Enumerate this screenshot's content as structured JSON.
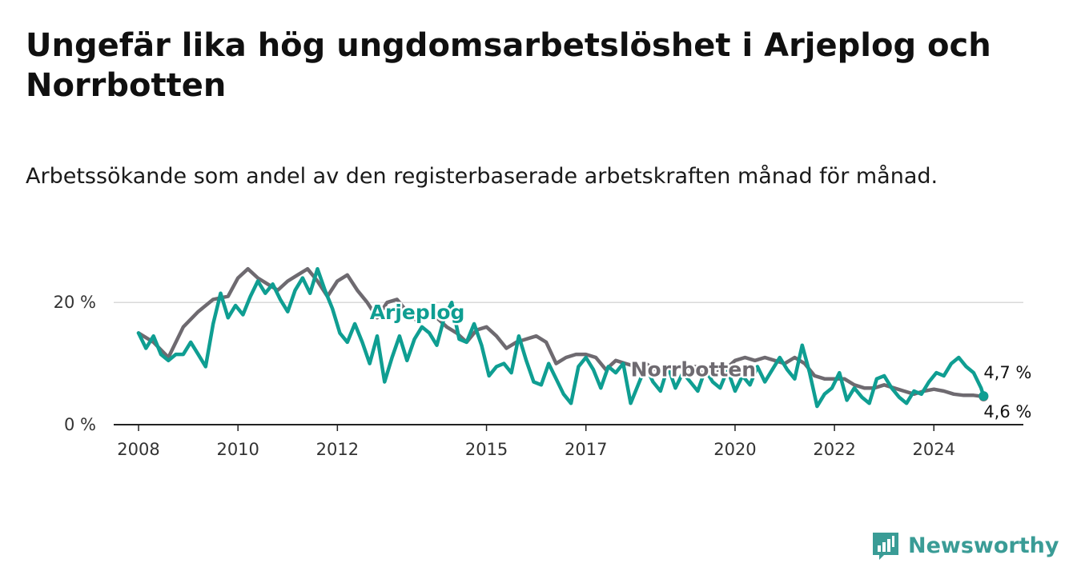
{
  "title": "Ungefär lika hög ungdomsarbetslöshet i Arjeplog och Norrbotten",
  "subtitle": "Arbetssökande som andel av den registerbaserade arbetskraften månad för månad.",
  "brand": {
    "name": "Newsworthy",
    "color": "#3a9c96",
    "icon": "bar-chart-icon"
  },
  "chart_data": {
    "type": "line",
    "x_unit": "year",
    "xlim": [
      2007.5,
      2025.8
    ],
    "ylim": [
      0,
      25
    ],
    "y_ticks": [
      {
        "value": 0,
        "label": "0 %"
      },
      {
        "value": 20,
        "label": "20 %"
      }
    ],
    "x_ticks": [
      {
        "value": 2008,
        "label": "2008"
      },
      {
        "value": 2010,
        "label": "2010"
      },
      {
        "value": 2012,
        "label": "2012"
      },
      {
        "value": 2015,
        "label": "2015"
      },
      {
        "value": 2017,
        "label": "2017"
      },
      {
        "value": 2020,
        "label": "2020"
      },
      {
        "value": 2022,
        "label": "2022"
      },
      {
        "value": 2024,
        "label": "2024"
      }
    ],
    "grid": "horizontal",
    "series": [
      {
        "name": "Norrbotten",
        "color": "#6e6a70",
        "end_label": "4,6 %",
        "points": [
          [
            2008.0,
            15.0
          ],
          [
            2008.3,
            13.5
          ],
          [
            2008.6,
            11.0
          ],
          [
            2008.9,
            16.0
          ],
          [
            2009.2,
            18.5
          ],
          [
            2009.5,
            20.5
          ],
          [
            2009.8,
            21.0
          ],
          [
            2010.0,
            24.0
          ],
          [
            2010.2,
            25.5
          ],
          [
            2010.4,
            24.0
          ],
          [
            2010.6,
            23.0
          ],
          [
            2010.8,
            22.0
          ],
          [
            2011.0,
            23.5
          ],
          [
            2011.2,
            24.5
          ],
          [
            2011.4,
            25.5
          ],
          [
            2011.6,
            23.5
          ],
          [
            2011.8,
            21.0
          ],
          [
            2012.0,
            23.5
          ],
          [
            2012.2,
            24.5
          ],
          [
            2012.4,
            22.0
          ],
          [
            2012.6,
            20.0
          ],
          [
            2012.8,
            17.5
          ],
          [
            2013.0,
            20.0
          ],
          [
            2013.2,
            20.5
          ],
          [
            2013.4,
            18.5
          ],
          [
            2013.6,
            17.0
          ],
          [
            2013.8,
            18.0
          ],
          [
            2014.0,
            17.5
          ],
          [
            2014.2,
            16.0
          ],
          [
            2014.4,
            15.0
          ],
          [
            2014.6,
            13.5
          ],
          [
            2014.8,
            15.5
          ],
          [
            2015.0,
            16.0
          ],
          [
            2015.2,
            14.5
          ],
          [
            2015.4,
            12.5
          ],
          [
            2015.6,
            13.5
          ],
          [
            2015.8,
            14.0
          ],
          [
            2016.0,
            14.5
          ],
          [
            2016.2,
            13.5
          ],
          [
            2016.4,
            10.0
          ],
          [
            2016.6,
            11.0
          ],
          [
            2016.8,
            11.5
          ],
          [
            2017.0,
            11.5
          ],
          [
            2017.2,
            11.0
          ],
          [
            2017.4,
            9.0
          ],
          [
            2017.6,
            10.5
          ],
          [
            2017.8,
            10.0
          ],
          [
            2018.0,
            9.5
          ],
          [
            2018.2,
            10.0
          ],
          [
            2018.4,
            9.0
          ],
          [
            2018.6,
            8.5
          ],
          [
            2018.8,
            9.5
          ],
          [
            2019.0,
            9.0
          ],
          [
            2019.2,
            9.5
          ],
          [
            2019.4,
            8.0
          ],
          [
            2019.6,
            8.5
          ],
          [
            2019.8,
            9.0
          ],
          [
            2020.0,
            10.5
          ],
          [
            2020.2,
            11.0
          ],
          [
            2020.4,
            10.5
          ],
          [
            2020.6,
            11.0
          ],
          [
            2020.8,
            10.5
          ],
          [
            2021.0,
            10.0
          ],
          [
            2021.2,
            11.0
          ],
          [
            2021.4,
            10.0
          ],
          [
            2021.6,
            8.0
          ],
          [
            2021.8,
            7.5
          ],
          [
            2022.0,
            7.5
          ],
          [
            2022.2,
            7.5
          ],
          [
            2022.4,
            6.5
          ],
          [
            2022.6,
            6.0
          ],
          [
            2022.8,
            6.0
          ],
          [
            2023.0,
            6.5
          ],
          [
            2023.2,
            6.0
          ],
          [
            2023.4,
            5.5
          ],
          [
            2023.6,
            5.0
          ],
          [
            2023.8,
            5.5
          ],
          [
            2024.0,
            5.8
          ],
          [
            2024.2,
            5.5
          ],
          [
            2024.4,
            5.0
          ],
          [
            2024.6,
            4.8
          ],
          [
            2024.8,
            4.8
          ],
          [
            2025.0,
            4.6
          ]
        ]
      },
      {
        "name": "Arjeplog",
        "color": "#0f9e92",
        "end_label": "4,7 %",
        "points": [
          [
            2008.0,
            15.0
          ],
          [
            2008.15,
            12.5
          ],
          [
            2008.3,
            14.5
          ],
          [
            2008.45,
            11.5
          ],
          [
            2008.6,
            10.5
          ],
          [
            2008.75,
            11.5
          ],
          [
            2008.9,
            11.5
          ],
          [
            2009.05,
            13.5
          ],
          [
            2009.2,
            11.5
          ],
          [
            2009.35,
            9.5
          ],
          [
            2009.5,
            16.5
          ],
          [
            2009.65,
            21.5
          ],
          [
            2009.8,
            17.5
          ],
          [
            2009.95,
            19.5
          ],
          [
            2010.1,
            18.0
          ],
          [
            2010.25,
            21.0
          ],
          [
            2010.4,
            23.5
          ],
          [
            2010.55,
            21.5
          ],
          [
            2010.7,
            23.0
          ],
          [
            2010.85,
            20.5
          ],
          [
            2011.0,
            18.5
          ],
          [
            2011.15,
            22.0
          ],
          [
            2011.3,
            24.0
          ],
          [
            2011.45,
            21.5
          ],
          [
            2011.6,
            25.5
          ],
          [
            2011.75,
            22.0
          ],
          [
            2011.9,
            19.0
          ],
          [
            2012.05,
            15.0
          ],
          [
            2012.2,
            13.5
          ],
          [
            2012.35,
            16.5
          ],
          [
            2012.5,
            13.5
          ],
          [
            2012.65,
            10.0
          ],
          [
            2012.8,
            14.5
          ],
          [
            2012.95,
            7.0
          ],
          [
            2013.1,
            11.0
          ],
          [
            2013.25,
            14.5
          ],
          [
            2013.4,
            10.5
          ],
          [
            2013.55,
            14.0
          ],
          [
            2013.7,
            16.0
          ],
          [
            2013.85,
            15.0
          ],
          [
            2014.0,
            13.0
          ],
          [
            2014.15,
            17.5
          ],
          [
            2014.3,
            20.0
          ],
          [
            2014.45,
            14.0
          ],
          [
            2014.6,
            13.5
          ],
          [
            2014.75,
            16.5
          ],
          [
            2014.9,
            13.0
          ],
          [
            2015.05,
            8.0
          ],
          [
            2015.2,
            9.5
          ],
          [
            2015.35,
            10.0
          ],
          [
            2015.5,
            8.5
          ],
          [
            2015.65,
            14.5
          ],
          [
            2015.8,
            10.5
          ],
          [
            2015.95,
            7.0
          ],
          [
            2016.1,
            6.5
          ],
          [
            2016.25,
            10.0
          ],
          [
            2016.4,
            7.5
          ],
          [
            2016.55,
            5.0
          ],
          [
            2016.7,
            3.5
          ],
          [
            2016.85,
            9.5
          ],
          [
            2017.0,
            11.0
          ],
          [
            2017.15,
            9.0
          ],
          [
            2017.3,
            6.0
          ],
          [
            2017.45,
            9.5
          ],
          [
            2017.6,
            8.5
          ],
          [
            2017.75,
            10.0
          ],
          [
            2017.9,
            3.5
          ],
          [
            2018.05,
            6.5
          ],
          [
            2018.2,
            9.5
          ],
          [
            2018.35,
            7.0
          ],
          [
            2018.5,
            5.5
          ],
          [
            2018.65,
            9.5
          ],
          [
            2018.8,
            6.0
          ],
          [
            2018.95,
            8.5
          ],
          [
            2019.1,
            7.0
          ],
          [
            2019.25,
            5.5
          ],
          [
            2019.4,
            9.0
          ],
          [
            2019.55,
            7.0
          ],
          [
            2019.7,
            6.0
          ],
          [
            2019.85,
            9.0
          ],
          [
            2020.0,
            5.5
          ],
          [
            2020.15,
            8.0
          ],
          [
            2020.3,
            6.5
          ],
          [
            2020.45,
            9.5
          ],
          [
            2020.6,
            7.0
          ],
          [
            2020.75,
            9.0
          ],
          [
            2020.9,
            11.0
          ],
          [
            2021.05,
            9.0
          ],
          [
            2021.2,
            7.5
          ],
          [
            2021.35,
            13.0
          ],
          [
            2021.5,
            8.5
          ],
          [
            2021.65,
            3.0
          ],
          [
            2021.8,
            5.0
          ],
          [
            2021.95,
            6.0
          ],
          [
            2022.1,
            8.5
          ],
          [
            2022.25,
            4.0
          ],
          [
            2022.4,
            6.0
          ],
          [
            2022.55,
            4.5
          ],
          [
            2022.7,
            3.5
          ],
          [
            2022.85,
            7.5
          ],
          [
            2023.0,
            8.0
          ],
          [
            2023.15,
            6.0
          ],
          [
            2023.3,
            4.5
          ],
          [
            2023.45,
            3.5
          ],
          [
            2023.6,
            5.5
          ],
          [
            2023.75,
            5.0
          ],
          [
            2023.9,
            7.0
          ],
          [
            2024.05,
            8.5
          ],
          [
            2024.2,
            8.0
          ],
          [
            2024.35,
            10.0
          ],
          [
            2024.5,
            11.0
          ],
          [
            2024.65,
            9.5
          ],
          [
            2024.8,
            8.5
          ],
          [
            2024.95,
            6.0
          ],
          [
            2025.0,
            4.7
          ]
        ]
      }
    ]
  }
}
